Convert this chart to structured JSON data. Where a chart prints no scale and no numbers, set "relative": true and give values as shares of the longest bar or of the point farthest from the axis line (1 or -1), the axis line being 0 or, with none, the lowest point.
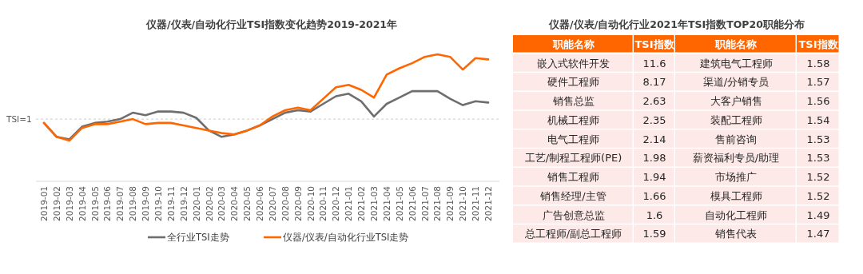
{
  "chart_data": [
    {
      "type": "line",
      "title": "仪器/仪表/自动化行业TSI指数变化趋势2019-2021年",
      "relative": true,
      "legend": "bottom",
      "categories": [
        "2019-01",
        "2019-02",
        "2019-03",
        "2019-04",
        "2019-05",
        "2019-06",
        "2019-07",
        "2019-08",
        "2019-09",
        "2019-10",
        "2019-11",
        "2019-12",
        "2020-01",
        "2020-02",
        "2020-03",
        "2020-04",
        "2020-05",
        "2020-06",
        "2020-07",
        "2020-08",
        "2020-09",
        "2020-10",
        "2020-11",
        "2020-12",
        "2021-01",
        "2021-02",
        "2021-03",
        "2021-04",
        "2021-05",
        "2021-06",
        "2021-07",
        "2021-08",
        "2021-09",
        "2021-10",
        "2021-11",
        "2021-12"
      ],
      "series": [
        {
          "name": "全行业TSI走势",
          "color": "#6e6e6e",
          "values": [
            0.46,
            0.35,
            0.33,
            0.43,
            0.46,
            0.47,
            0.49,
            0.54,
            0.52,
            0.55,
            0.55,
            0.54,
            0.5,
            0.4,
            0.35,
            0.37,
            0.4,
            0.44,
            0.49,
            0.54,
            0.56,
            0.55,
            0.61,
            0.67,
            0.69,
            0.63,
            0.51,
            0.61,
            0.66,
            0.71,
            0.71,
            0.71,
            0.65,
            0.6,
            0.63,
            0.62
          ]
        },
        {
          "name": "仪器/仪表/自动化行业TSI走势",
          "color": "#ff6600",
          "values": [
            0.46,
            0.35,
            0.32,
            0.42,
            0.45,
            0.45,
            0.47,
            0.49,
            0.45,
            0.46,
            0.46,
            0.44,
            0.42,
            0.4,
            0.38,
            0.37,
            0.4,
            0.44,
            0.51,
            0.56,
            0.58,
            0.56,
            0.65,
            0.74,
            0.76,
            0.72,
            0.66,
            0.84,
            0.89,
            0.93,
            0.98,
            1,
            0.98,
            0.88,
            0.97,
            0.96
          ]
        }
      ],
      "ref_lines": [
        {
          "axis": "y",
          "value": 0.49,
          "color": "#cccccc",
          "line_style": "dashed"
        }
      ],
      "annotations": [
        "TSI=1"
      ]
    },
    {
      "type": "other",
      "title": "仪器/仪表/自动化行业2021年TSI指数TOP20职能分布",
      "xlabel": "职能名称",
      "ylabel": "TSI指数",
      "data_labels": true,
      "categories": [
        "嵌入式软件开发",
        "硬件工程师",
        "销售总监",
        "机械工程师",
        "电气工程师",
        "工艺/制程工程师(PE)",
        "销售工程师",
        "销售经理/主管",
        "广告创意总监",
        "总工程师/副总工程师"
      ],
      "values": [
        11.6,
        8.17,
        2.63,
        2.35,
        2.14,
        1.98,
        1.94,
        1.66,
        1.6,
        1.59
      ]
    },
    {
      "type": "other",
      "xlabel": "职能名称",
      "ylabel": "TSI指数",
      "data_labels": true,
      "categories": [
        "建筑电气工程师",
        "渠道/分销专员",
        "大客户销售",
        "装配工程师",
        "售前咨询",
        "薪资福利专员/助理",
        "市场推广",
        "模具工程师",
        "自动化工程师",
        "销售代表"
      ],
      "values": [
        1.58,
        1.57,
        1.56,
        1.54,
        1.53,
        1.53,
        1.52,
        1.52,
        1.49,
        1.47
      ]
    }
  ]
}
